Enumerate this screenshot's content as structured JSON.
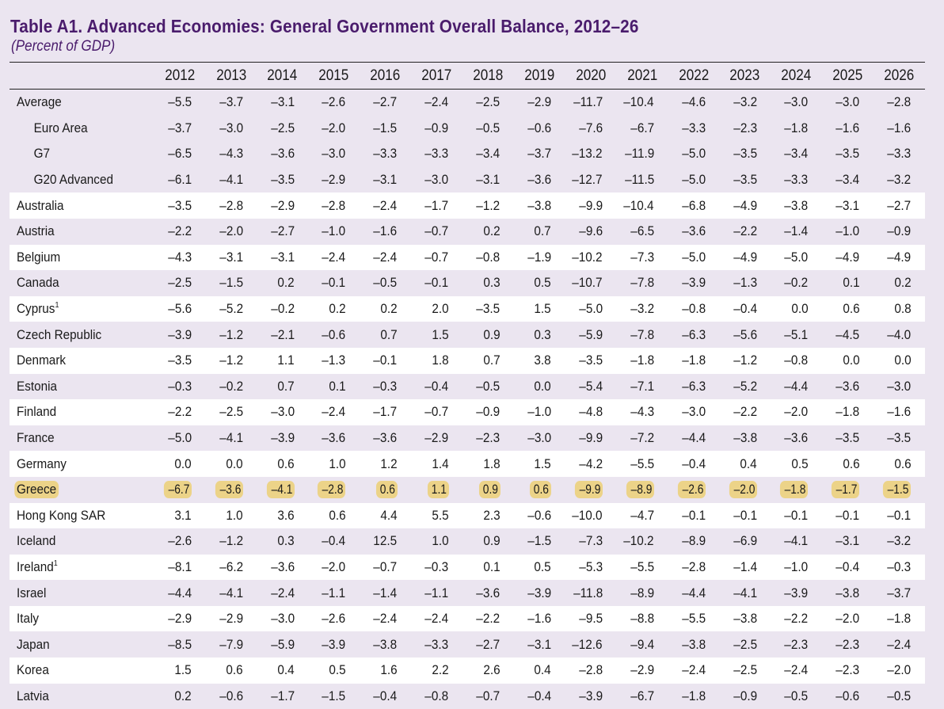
{
  "title": "Table A1. Advanced Economies: General Government Overall Balance, 2012–26",
  "subtitle": "(Percent of GDP)",
  "colors": {
    "title": "#4a1c6c",
    "background": "#ebe5f0",
    "band": "#ffffff",
    "highlight": "#ecd388"
  },
  "columns": [
    "2012",
    "2013",
    "2014",
    "2015",
    "2016",
    "2017",
    "2018",
    "2019",
    "2020",
    "2021",
    "2022",
    "2023",
    "2024",
    "2025",
    "2026"
  ],
  "rows": [
    {
      "label": "Average",
      "footnote": "",
      "indent": false,
      "band": false,
      "highlight": false,
      "values": [
        "–5.5",
        "–3.7",
        "–3.1",
        "–2.6",
        "–2.7",
        "–2.4",
        "–2.5",
        "–2.9",
        "–11.7",
        "–10.4",
        "–4.6",
        "–3.2",
        "–3.0",
        "–3.0",
        "–2.8"
      ]
    },
    {
      "label": "Euro Area",
      "footnote": "",
      "indent": true,
      "band": false,
      "highlight": false,
      "values": [
        "–3.7",
        "–3.0",
        "–2.5",
        "–2.0",
        "–1.5",
        "–0.9",
        "–0.5",
        "–0.6",
        "–7.6",
        "–6.7",
        "–3.3",
        "–2.3",
        "–1.8",
        "–1.6",
        "–1.6"
      ]
    },
    {
      "label": "G7",
      "footnote": "",
      "indent": true,
      "band": false,
      "highlight": false,
      "values": [
        "–6.5",
        "–4.3",
        "–3.6",
        "–3.0",
        "–3.3",
        "–3.3",
        "–3.4",
        "–3.7",
        "–13.2",
        "–11.9",
        "–5.0",
        "–3.5",
        "–3.4",
        "–3.5",
        "–3.3"
      ]
    },
    {
      "label": "G20 Advanced",
      "footnote": "",
      "indent": true,
      "band": false,
      "highlight": false,
      "values": [
        "–6.1",
        "–4.1",
        "–3.5",
        "–2.9",
        "–3.1",
        "–3.0",
        "–3.1",
        "–3.6",
        "–12.7",
        "–11.5",
        "–5.0",
        "–3.5",
        "–3.3",
        "–3.4",
        "–3.2"
      ]
    },
    {
      "label": "Australia",
      "footnote": "",
      "indent": false,
      "band": true,
      "highlight": false,
      "values": [
        "–3.5",
        "–2.8",
        "–2.9",
        "–2.8",
        "–2.4",
        "–1.7",
        "–1.2",
        "–3.8",
        "–9.9",
        "–10.4",
        "–6.8",
        "–4.9",
        "–3.8",
        "–3.1",
        "–2.7"
      ]
    },
    {
      "label": "Austria",
      "footnote": "",
      "indent": false,
      "band": false,
      "highlight": false,
      "values": [
        "–2.2",
        "–2.0",
        "–2.7",
        "–1.0",
        "–1.6",
        "–0.7",
        "0.2",
        "0.7",
        "–9.6",
        "–6.5",
        "–3.6",
        "–2.2",
        "–1.4",
        "–1.0",
        "–0.9"
      ]
    },
    {
      "label": "Belgium",
      "footnote": "",
      "indent": false,
      "band": true,
      "highlight": false,
      "values": [
        "–4.3",
        "–3.1",
        "–3.1",
        "–2.4",
        "–2.4",
        "–0.7",
        "–0.8",
        "–1.9",
        "–10.2",
        "–7.3",
        "–5.0",
        "–4.9",
        "–5.0",
        "–4.9",
        "–4.9"
      ]
    },
    {
      "label": "Canada",
      "footnote": "",
      "indent": false,
      "band": false,
      "highlight": false,
      "values": [
        "–2.5",
        "–1.5",
        "0.2",
        "–0.1",
        "–0.5",
        "–0.1",
        "0.3",
        "0.5",
        "–10.7",
        "–7.8",
        "–3.9",
        "–1.3",
        "–0.2",
        "0.1",
        "0.2"
      ]
    },
    {
      "label": "Cyprus",
      "footnote": "1",
      "indent": false,
      "band": true,
      "highlight": false,
      "values": [
        "–5.6",
        "–5.2",
        "–0.2",
        "0.2",
        "0.2",
        "2.0",
        "–3.5",
        "1.5",
        "–5.0",
        "–3.2",
        "–0.8",
        "–0.4",
        "0.0",
        "0.6",
        "0.8"
      ]
    },
    {
      "label": "Czech Republic",
      "footnote": "",
      "indent": false,
      "band": false,
      "highlight": false,
      "values": [
        "–3.9",
        "–1.2",
        "–2.1",
        "–0.6",
        "0.7",
        "1.5",
        "0.9",
        "0.3",
        "–5.9",
        "–7.8",
        "–6.3",
        "–5.6",
        "–5.1",
        "–4.5",
        "–4.0"
      ]
    },
    {
      "label": "Denmark",
      "footnote": "",
      "indent": false,
      "band": true,
      "highlight": false,
      "values": [
        "–3.5",
        "–1.2",
        "1.1",
        "–1.3",
        "–0.1",
        "1.8",
        "0.7",
        "3.8",
        "–3.5",
        "–1.8",
        "–1.8",
        "–1.2",
        "–0.8",
        "0.0",
        "0.0"
      ]
    },
    {
      "label": "Estonia",
      "footnote": "",
      "indent": false,
      "band": false,
      "highlight": false,
      "values": [
        "–0.3",
        "–0.2",
        "0.7",
        "0.1",
        "–0.3",
        "–0.4",
        "–0.5",
        "0.0",
        "–5.4",
        "–7.1",
        "–6.3",
        "–5.2",
        "–4.4",
        "–3.6",
        "–3.0"
      ]
    },
    {
      "label": "Finland",
      "footnote": "",
      "indent": false,
      "band": true,
      "highlight": false,
      "values": [
        "–2.2",
        "–2.5",
        "–3.0",
        "–2.4",
        "–1.7",
        "–0.7",
        "–0.9",
        "–1.0",
        "–4.8",
        "–4.3",
        "–3.0",
        "–2.2",
        "–2.0",
        "–1.8",
        "–1.6"
      ]
    },
    {
      "label": "France",
      "footnote": "",
      "indent": false,
      "band": false,
      "highlight": false,
      "values": [
        "–5.0",
        "–4.1",
        "–3.9",
        "–3.6",
        "–3.6",
        "–2.9",
        "–2.3",
        "–3.0",
        "–9.9",
        "–7.2",
        "–4.4",
        "–3.8",
        "–3.6",
        "–3.5",
        "–3.5"
      ]
    },
    {
      "label": "Germany",
      "footnote": "",
      "indent": false,
      "band": true,
      "highlight": false,
      "values": [
        "0.0",
        "0.0",
        "0.6",
        "1.0",
        "1.2",
        "1.4",
        "1.8",
        "1.5",
        "–4.2",
        "–5.5",
        "–0.4",
        "0.4",
        "0.5",
        "0.6",
        "0.6"
      ]
    },
    {
      "label": "Greece",
      "footnote": "",
      "indent": false,
      "band": false,
      "highlight": true,
      "values": [
        "–6.7",
        "–3.6",
        "–4.1",
        "–2.8",
        "0.6",
        "1.1",
        "0.9",
        "0.6",
        "–9.9",
        "–8.9",
        "–2.6",
        "–2.0",
        "–1.8",
        "–1.7",
        "–1.5"
      ]
    },
    {
      "label": "Hong Kong SAR",
      "footnote": "",
      "indent": false,
      "band": true,
      "highlight": false,
      "values": [
        "3.1",
        "1.0",
        "3.6",
        "0.6",
        "4.4",
        "5.5",
        "2.3",
        "–0.6",
        "–10.0",
        "–4.7",
        "–0.1",
        "–0.1",
        "–0.1",
        "–0.1",
        "–0.1"
      ]
    },
    {
      "label": "Iceland",
      "footnote": "",
      "indent": false,
      "band": false,
      "highlight": false,
      "values": [
        "–2.6",
        "–1.2",
        "0.3",
        "–0.4",
        "12.5",
        "1.0",
        "0.9",
        "–1.5",
        "–7.3",
        "–10.2",
        "–8.9",
        "–6.9",
        "–4.1",
        "–3.1",
        "–3.2"
      ]
    },
    {
      "label": "Ireland",
      "footnote": "1",
      "indent": false,
      "band": true,
      "highlight": false,
      "values": [
        "–8.1",
        "–6.2",
        "–3.6",
        "–2.0",
        "–0.7",
        "–0.3",
        "0.1",
        "0.5",
        "–5.3",
        "–5.5",
        "–2.8",
        "–1.4",
        "–1.0",
        "–0.4",
        "–0.3"
      ]
    },
    {
      "label": "Israel",
      "footnote": "",
      "indent": false,
      "band": false,
      "highlight": false,
      "values": [
        "–4.4",
        "–4.1",
        "–2.4",
        "–1.1",
        "–1.4",
        "–1.1",
        "–3.6",
        "–3.9",
        "–11.8",
        "–8.9",
        "–4.4",
        "–4.1",
        "–3.9",
        "–3.8",
        "–3.7"
      ]
    },
    {
      "label": "Italy",
      "footnote": "",
      "indent": false,
      "band": true,
      "highlight": false,
      "values": [
        "–2.9",
        "–2.9",
        "–3.0",
        "–2.6",
        "–2.4",
        "–2.4",
        "–2.2",
        "–1.6",
        "–9.5",
        "–8.8",
        "–5.5",
        "–3.8",
        "–2.2",
        "–2.0",
        "–1.8"
      ]
    },
    {
      "label": "Japan",
      "footnote": "",
      "indent": false,
      "band": false,
      "highlight": false,
      "values": [
        "–8.5",
        "–7.9",
        "–5.9",
        "–3.9",
        "–3.8",
        "–3.3",
        "–2.7",
        "–3.1",
        "–12.6",
        "–9.4",
        "–3.8",
        "–2.5",
        "–2.3",
        "–2.3",
        "–2.4"
      ]
    },
    {
      "label": "Korea",
      "footnote": "",
      "indent": false,
      "band": true,
      "highlight": false,
      "values": [
        "1.5",
        "0.6",
        "0.4",
        "0.5",
        "1.6",
        "2.2",
        "2.6",
        "0.4",
        "–2.8",
        "–2.9",
        "–2.4",
        "–2.5",
        "–2.4",
        "–2.3",
        "–2.0"
      ]
    },
    {
      "label": "Latvia",
      "footnote": "",
      "indent": false,
      "band": false,
      "highlight": false,
      "values": [
        "0.2",
        "–0.6",
        "–1.7",
        "–1.5",
        "–0.4",
        "–0.8",
        "–0.7",
        "–0.4",
        "–3.9",
        "–6.7",
        "–1.8",
        "–0.9",
        "–0.5",
        "–0.6",
        "–0.5"
      ]
    }
  ]
}
